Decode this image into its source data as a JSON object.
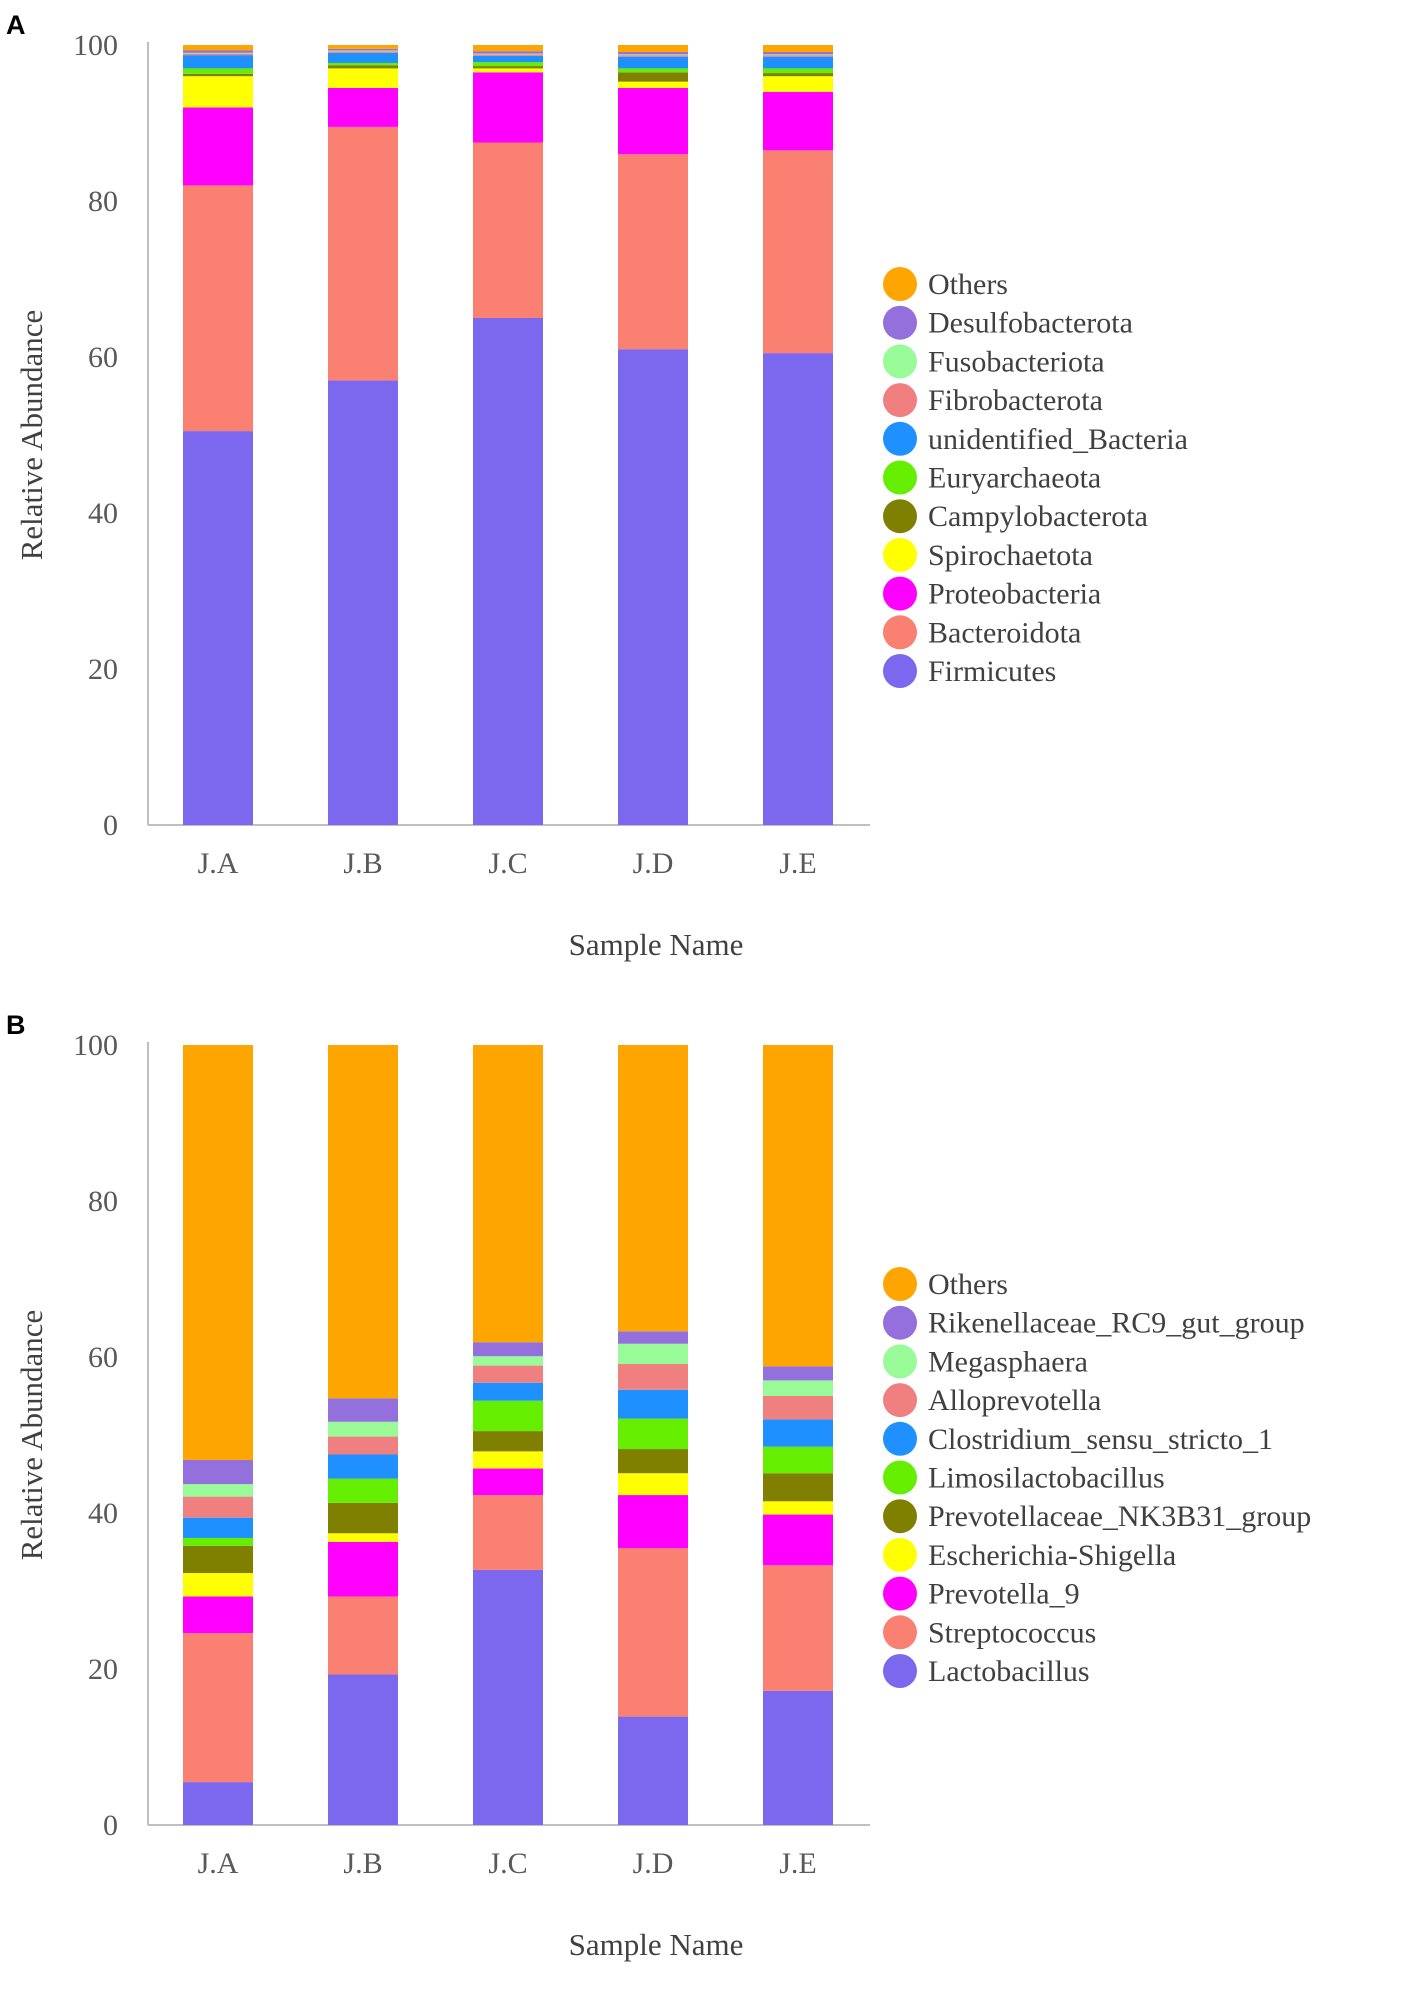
{
  "chart_data": [
    {
      "panel_label": "A",
      "type": "bar",
      "stacked": true,
      "title": "",
      "xlabel": "Sample Name",
      "ylabel": "Relative Abundance",
      "ylim": [
        0,
        100
      ],
      "yticks": [
        "0",
        "20",
        "40",
        "60",
        "80",
        "100"
      ],
      "categories": [
        "J.A",
        "J.B",
        "J.C",
        "J.D",
        "J.E"
      ],
      "legend_position": "right",
      "series": [
        {
          "name": "Firmicutes",
          "color": "#7b68ee",
          "values": [
            50.5,
            57.0,
            65.0,
            61.0,
            60.5
          ]
        },
        {
          "name": "Bacteroidota",
          "color": "#fa8072",
          "values": [
            31.5,
            32.5,
            22.5,
            25.0,
            26.0
          ]
        },
        {
          "name": "Proteobacteria",
          "color": "#ff00ff",
          "values": [
            10.0,
            5.0,
            9.0,
            8.5,
            7.5
          ]
        },
        {
          "name": "Spirochaetota",
          "color": "#ffff00",
          "values": [
            4.0,
            2.5,
            0.5,
            0.8,
            2.0
          ]
        },
        {
          "name": "Campylobacterota",
          "color": "#808000",
          "values": [
            0.3,
            0.4,
            0.3,
            1.2,
            0.4
          ]
        },
        {
          "name": "Euryarchaeota",
          "color": "#66ee00",
          "values": [
            0.7,
            0.3,
            0.5,
            0.5,
            0.6
          ]
        },
        {
          "name": "unidentified_Bacteria",
          "color": "#1e90ff",
          "values": [
            1.7,
            1.3,
            0.8,
            1.5,
            1.5
          ]
        },
        {
          "name": "Fibrobacterota",
          "color": "#f08080",
          "values": [
            0.2,
            0.2,
            0.2,
            0.2,
            0.2
          ]
        },
        {
          "name": "Fusobacteriota",
          "color": "#98fb98",
          "values": [
            0.1,
            0.1,
            0.1,
            0.1,
            0.1
          ]
        },
        {
          "name": "Desulfobacterota",
          "color": "#9370db",
          "values": [
            0.3,
            0.2,
            0.3,
            0.3,
            0.3
          ]
        },
        {
          "name": "Others",
          "color": "#ffa500",
          "values": [
            0.7,
            0.5,
            0.8,
            0.9,
            0.9
          ]
        }
      ]
    },
    {
      "panel_label": "B",
      "type": "bar",
      "stacked": true,
      "title": "",
      "xlabel": "Sample Name",
      "ylabel": "Relative Abundance",
      "ylim": [
        0,
        100
      ],
      "yticks": [
        "0",
        "20",
        "40",
        "60",
        "80",
        "100"
      ],
      "categories": [
        "J.A",
        "J.B",
        "J.C",
        "J.D",
        "J.E"
      ],
      "legend_position": "right",
      "series": [
        {
          "name": "Lactobacillus",
          "color": "#7b68ee",
          "values": [
            5.5,
            19.3,
            32.7,
            13.9,
            17.2
          ]
        },
        {
          "name": "Streptococcus",
          "color": "#fa8072",
          "values": [
            19.1,
            10.0,
            9.6,
            21.6,
            16.1
          ]
        },
        {
          "name": "Prevotella_9",
          "color": "#ff00ff",
          "values": [
            4.7,
            7.0,
            3.4,
            6.8,
            6.5
          ]
        },
        {
          "name": "Escherichia-Shigella",
          "color": "#ffff00",
          "values": [
            3.0,
            1.1,
            2.2,
            2.8,
            1.7
          ]
        },
        {
          "name": "Prevotellaceae_NK3B31_group",
          "color": "#808000",
          "values": [
            3.5,
            3.9,
            2.6,
            3.1,
            3.6
          ]
        },
        {
          "name": "Limosilactobacillus",
          "color": "#66ee00",
          "values": [
            1.0,
            3.1,
            3.9,
            3.9,
            3.4
          ]
        },
        {
          "name": "Clostridium_sensu_stricto_1",
          "color": "#1e90ff",
          "values": [
            2.6,
            3.1,
            2.3,
            3.7,
            3.5
          ]
        },
        {
          "name": "Alloprevotella",
          "color": "#f08080",
          "values": [
            2.7,
            2.3,
            2.2,
            3.3,
            3.0
          ]
        },
        {
          "name": "Megasphaera",
          "color": "#98fb98",
          "values": [
            1.6,
            1.9,
            1.2,
            2.6,
            2.0
          ]
        },
        {
          "name": "Rikenellaceae_RC9_gut_group",
          "color": "#9370db",
          "values": [
            3.1,
            3.0,
            1.8,
            1.6,
            1.8
          ]
        },
        {
          "name": "Others",
          "color": "#ffa500",
          "values": [
            53.2,
            45.3,
            38.1,
            36.7,
            41.2
          ]
        }
      ]
    }
  ]
}
